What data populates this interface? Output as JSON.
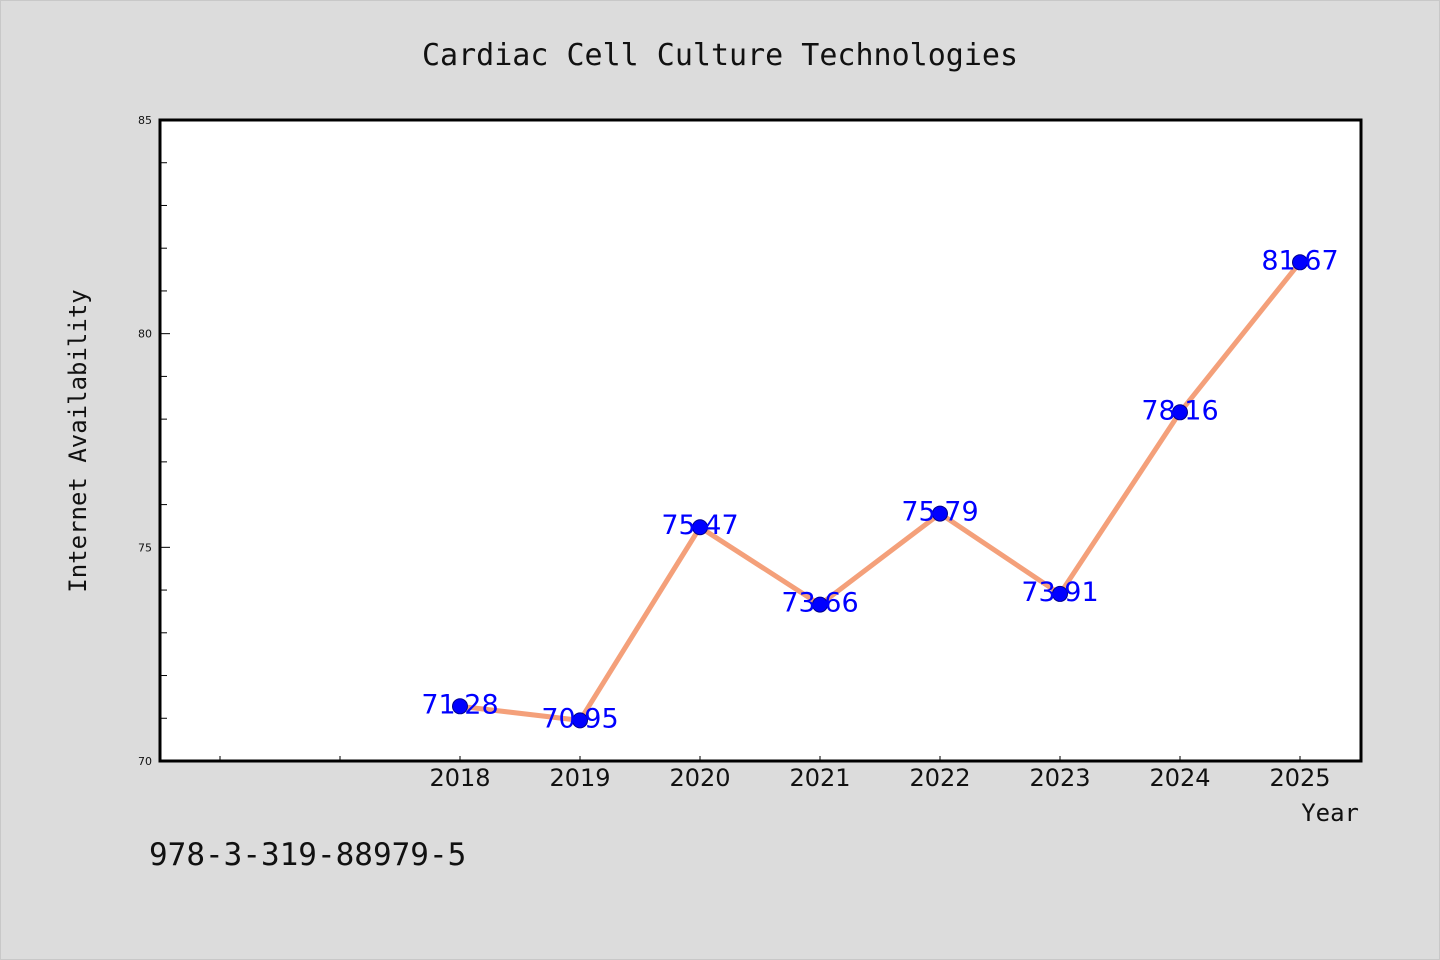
{
  "chart_data": {
    "type": "line",
    "title": "Cardiac Cell Culture Technologies",
    "xlabel": "Year",
    "ylabel": "Internet Availability",
    "categories": [
      "2018",
      "2019",
      "2020",
      "2021",
      "2022",
      "2023",
      "2024",
      "2025"
    ],
    "values": [
      71.28,
      70.95,
      75.47,
      73.66,
      75.79,
      73.91,
      78.16,
      81.67
    ],
    "data_labels": [
      "71.28",
      "70.95",
      "75.47",
      "73.66",
      "75.79",
      "73.91",
      "78.16",
      "81.67"
    ],
    "ylim": [
      70,
      85
    ],
    "yticks": [
      "70",
      "75",
      "80",
      "85"
    ],
    "grid": false,
    "line_color": "#f4a07a",
    "marker_color": "#0000ff",
    "label_color": "#0000ff",
    "plot_background": "#ffffff",
    "figure_background": "#dcdcdc"
  },
  "footnote": "978-3-319-88979-5"
}
